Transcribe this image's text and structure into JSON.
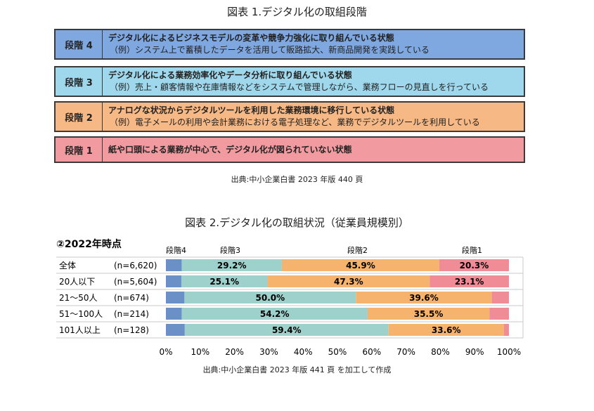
{
  "figure1": {
    "title": "図表 1.デジタル化の取組段階",
    "stages": [
      {
        "label": "段階 4",
        "main": "デジタル化によるビジネスモデルの変革や競争力強化に取り組んでいる状態",
        "example": "（例）システム上で蓄積したデータを活用して販路拡大、新商品開発を実践している",
        "color": "#7fa7e0"
      },
      {
        "label": "段階 3",
        "main": "デジタル化による業務効率化やデータ分析に取り組んでいる状態",
        "example": "（例）売上・顧客情報や在庫情報などをシステムで管理しながら、業務フローの見直しを行っている",
        "color": "#9fd8ec"
      },
      {
        "label": "段階 2",
        "main": "アナログな状況からデジタルツールを利用した業務環境に移行している状態",
        "example": "（例）電子メールの利用や会計業務における電子処理など、業務でデジタルツールを利用している",
        "color": "#f6b884"
      },
      {
        "label": "段階 1",
        "main": "紙や口頭による業務が中心で、デジタル化が図られていない状態",
        "example": "",
        "color": "#f19aa0"
      }
    ],
    "source": "出典:中小企業白書 2023 年版 440 頁"
  },
  "figure2": {
    "title": "図表 2.デジタル化の取組状況（従業員規模別）",
    "source": "出典:中小企業白書 2023 年版 441 頁 を加工して作成"
  },
  "chart_data": {
    "type": "bar",
    "orientation": "horizontal-stacked-100",
    "title": "②2022年時点",
    "categories": [
      "全体",
      "20人以下",
      "21～50人",
      "51～100人",
      "101人以上"
    ],
    "n_labels": [
      "(n=6,620)",
      "(n=5,604)",
      "(n=674)",
      "(n=214)",
      "(n=128)"
    ],
    "series": [
      {
        "name": "段階4",
        "color": "#6b8fc7",
        "values": [
          4.6,
          4.5,
          5.4,
          4.6,
          5.5
        ],
        "labels": [
          "",
          "",
          "",
          "",
          ""
        ]
      },
      {
        "name": "段階3",
        "color": "#9ed1cc",
        "values": [
          29.2,
          25.1,
          50.0,
          54.2,
          59.4
        ],
        "labels": [
          "29.2%",
          "25.1%",
          "50.0%",
          "54.2%",
          "59.4%"
        ]
      },
      {
        "name": "段階2",
        "color": "#f6b36e",
        "values": [
          45.9,
          47.3,
          39.6,
          35.5,
          33.6
        ],
        "labels": [
          "45.9%",
          "47.3%",
          "39.6%",
          "35.5%",
          "33.6%"
        ]
      },
      {
        "name": "段階1",
        "color": "#ef8c95",
        "values": [
          20.3,
          23.1,
          5.0,
          5.7,
          1.5
        ],
        "labels": [
          "20.3%",
          "23.1%",
          "",
          "",
          ""
        ]
      }
    ],
    "xlim": [
      0,
      100
    ],
    "xticks": [
      "0%",
      "10%",
      "20%",
      "30%",
      "40%",
      "50%",
      "60%",
      "70%",
      "80%",
      "90%",
      "100%"
    ],
    "grid": false,
    "legend": "top"
  }
}
